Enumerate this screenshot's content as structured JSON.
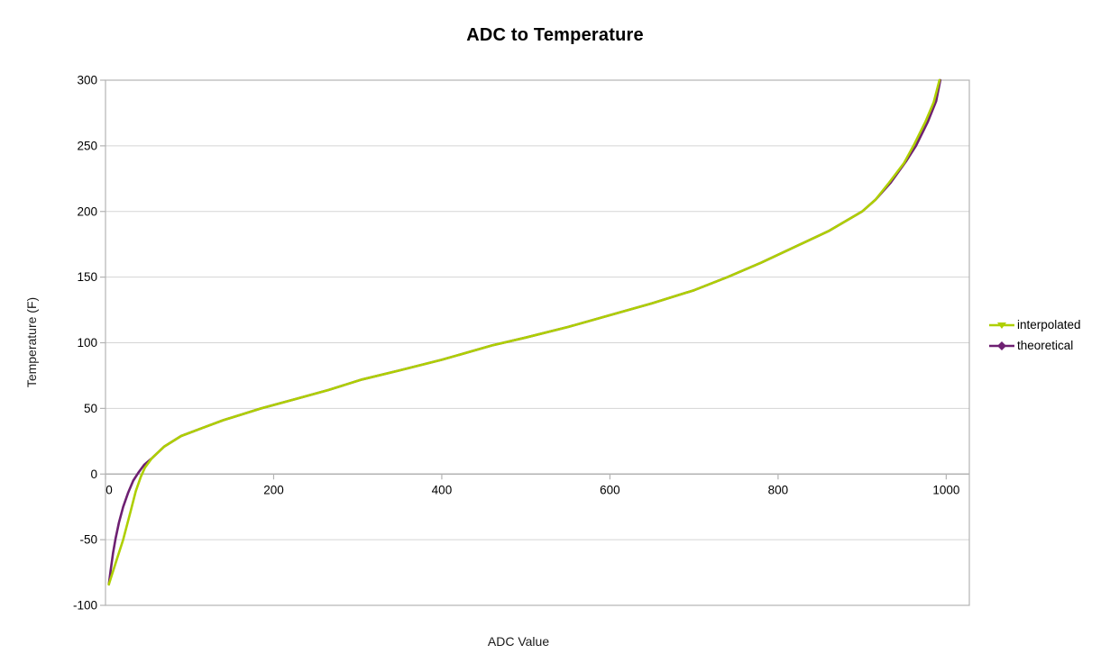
{
  "chart_data": {
    "type": "line",
    "title": "ADC to Temperature",
    "xlabel": "ADC Value",
    "ylabel": "Temperature (F)",
    "xlim": [
      0,
      1027.5
    ],
    "ylim": [
      -100,
      300
    ],
    "x_ticks": [
      0,
      200,
      400,
      600,
      800,
      1000
    ],
    "y_ticks": [
      -100,
      -50,
      0,
      50,
      100,
      150,
      200,
      250,
      300
    ],
    "grid": "horizontal-only",
    "legend_position": "right",
    "colors": {
      "interpolated": "#AECF00",
      "theoretical": "#6E2072",
      "gridline": "#d5d5d5",
      "axis": "#b3b3b3"
    },
    "series": [
      {
        "name": "interpolated",
        "color": "#AECF00",
        "marker": "triangle-down",
        "points": [
          [
            4,
            -84
          ],
          [
            13,
            -66
          ],
          [
            21,
            -50
          ],
          [
            30,
            -28
          ],
          [
            36,
            -13
          ],
          [
            42,
            -2
          ],
          [
            47,
            5
          ],
          [
            55,
            12
          ],
          [
            70,
            21
          ],
          [
            90,
            29
          ],
          [
            115,
            35
          ],
          [
            140,
            41
          ],
          [
            165,
            46
          ],
          [
            185,
            50
          ],
          [
            225,
            57
          ],
          [
            265,
            64
          ],
          [
            305,
            72
          ],
          [
            350,
            79
          ],
          [
            400,
            87
          ],
          [
            460,
            98
          ],
          [
            500,
            104
          ],
          [
            550,
            112
          ],
          [
            600,
            121
          ],
          [
            650,
            130
          ],
          [
            700,
            140
          ],
          [
            740,
            150
          ],
          [
            780,
            161
          ],
          [
            820,
            173
          ],
          [
            860,
            185
          ],
          [
            900,
            200
          ],
          [
            916,
            209
          ],
          [
            931,
            221
          ],
          [
            950,
            237
          ],
          [
            961,
            250
          ],
          [
            975,
            268
          ],
          [
            985,
            283
          ],
          [
            992,
            300
          ]
        ]
      },
      {
        "name": "theoretical",
        "color": "#6E2072",
        "marker": "diamond",
        "points": [
          [
            4,
            -84
          ],
          [
            6,
            -74
          ],
          [
            9,
            -60
          ],
          [
            12,
            -49
          ],
          [
            16,
            -37
          ],
          [
            21,
            -25
          ],
          [
            27,
            -14
          ],
          [
            33,
            -5
          ],
          [
            39,
            1
          ],
          [
            46,
            7
          ],
          [
            55,
            12
          ],
          [
            70,
            21
          ],
          [
            90,
            29
          ],
          [
            115,
            35
          ],
          [
            140,
            41
          ],
          [
            165,
            46
          ],
          [
            185,
            50
          ],
          [
            225,
            57
          ],
          [
            265,
            64
          ],
          [
            305,
            72
          ],
          [
            350,
            79
          ],
          [
            400,
            87
          ],
          [
            460,
            98
          ],
          [
            500,
            104
          ],
          [
            550,
            112
          ],
          [
            600,
            121
          ],
          [
            650,
            130
          ],
          [
            700,
            140
          ],
          [
            740,
            150
          ],
          [
            780,
            161
          ],
          [
            820,
            173
          ],
          [
            860,
            185
          ],
          [
            900,
            200
          ],
          [
            916,
            209
          ],
          [
            934,
            222
          ],
          [
            952,
            238
          ],
          [
            964,
            250
          ],
          [
            978,
            268
          ],
          [
            988,
            284
          ],
          [
            993,
            300
          ]
        ]
      }
    ]
  },
  "legend": {
    "items": [
      {
        "label": "interpolated"
      },
      {
        "label": "theoretical"
      }
    ]
  }
}
